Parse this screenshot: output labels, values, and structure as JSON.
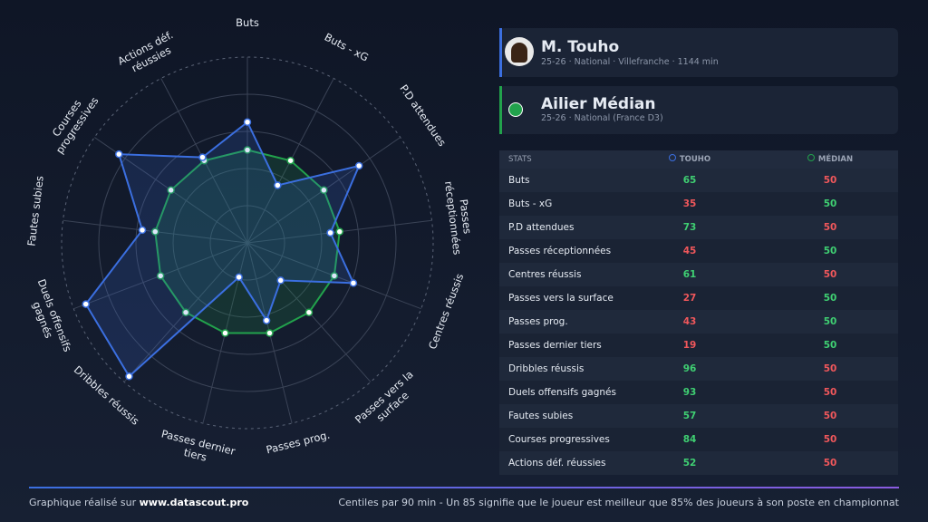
{
  "player": {
    "name": "M. Touho",
    "info": "25-26 · National · Villefranche · 1144 min"
  },
  "reference": {
    "name": "Ailier Médian",
    "info": "25-26 · National (France D3)"
  },
  "table": {
    "header": "STATS"
  },
  "footer": {
    "left": "Graphique réalisé sur",
    "site": "www.datascout.pro",
    "note": "Centiles par 90 min - Un 85 signifie que le joueur est meilleur que 85% des joueurs à son poste en championnat"
  },
  "chart_data": {
    "type": "radar",
    "categories": [
      "Buts",
      "Buts - xG",
      "P.D attendues",
      "Passes réceptionnées",
      "Centres réussis",
      "Passes vers la surface",
      "Passes prog.",
      "Passes dernier tiers",
      "Dribbles réussis",
      "Duels offensifs gagnés",
      "Fautes subies",
      "Courses progressives",
      "Actions déf. réussies"
    ],
    "series": [
      {
        "name": "Touho",
        "color": "#3b6fe0",
        "values": [
          65,
          35,
          73,
          45,
          61,
          27,
          43,
          19,
          96,
          93,
          57,
          84,
          52
        ]
      },
      {
        "name": "Médian",
        "color": "#22a24c",
        "values": [
          50,
          50,
          50,
          50,
          50,
          50,
          50,
          50,
          50,
          50,
          50,
          50,
          50
        ]
      }
    ],
    "ylim": [
      0,
      100
    ],
    "yticks": [
      20,
      40,
      60,
      80,
      100
    ],
    "grid": true
  }
}
